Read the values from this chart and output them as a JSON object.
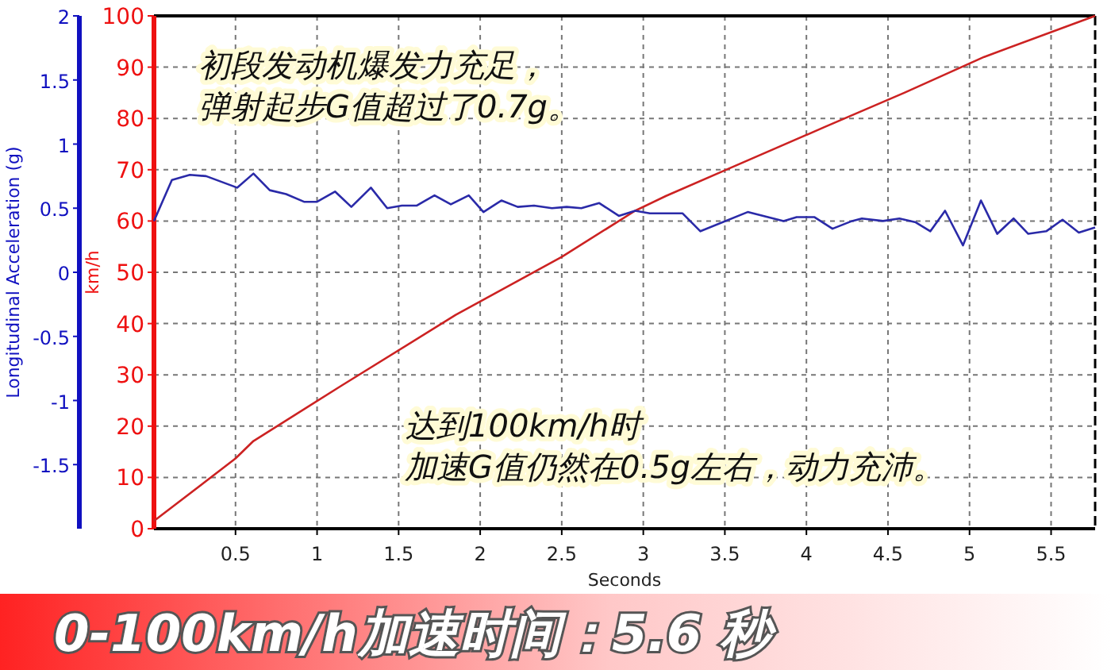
{
  "chart_data": {
    "type": "line",
    "title": "0-100km/h加速时间：5.6 秒",
    "xlabel": "Seconds",
    "ylabel": "km/h",
    "y2label": "Longitudinal Acceleration (g)",
    "annotations": [
      "初段发动机爆发力充足，",
      "弹射起步G值超过了0.7g。",
      "达到100km/h时",
      "加速G值仍然在0.5g左右，动力充沛。"
    ],
    "xlim": [
      0,
      5.77
    ],
    "xticks": [
      0.5,
      1,
      1.5,
      2,
      2.5,
      3,
      3.5,
      4,
      4.5,
      5,
      5.5
    ],
    "ylim": [
      0,
      100
    ],
    "yticks": [
      0,
      10,
      20,
      30,
      40,
      50,
      60,
      70,
      80,
      90,
      100
    ],
    "y2lim": [
      -2,
      2
    ],
    "y2ticks": [
      -1.5,
      -1,
      -0.5,
      0,
      0.5,
      1,
      1.5,
      2
    ],
    "grid": true,
    "series": [
      {
        "color": "#cc2222",
        "x": [
          0,
          0.5,
          0.61,
          1.15,
          1.85,
          2.5,
          2.95,
          3.14,
          3.53,
          4.11,
          4.6,
          5.09,
          5.77
        ],
        "values": [
          1.5,
          13.7,
          17.1,
          27.9,
          41.7,
          53,
          62,
          64.9,
          70.3,
          78.3,
          85,
          92,
          100
        ]
      },
      {
        "color": "#2a2aa8",
        "axis": "y2",
        "x": [
          0,
          0.11,
          0.22,
          0.32,
          0.51,
          0.61,
          0.71,
          0.81,
          0.92,
          1.0,
          1.11,
          1.21,
          1.33,
          1.43,
          1.52,
          1.61,
          1.72,
          1.82,
          1.93,
          2.02,
          2.13,
          2.23,
          2.33,
          2.44,
          2.53,
          2.62,
          2.73,
          2.85,
          2.95,
          3.04,
          3.24,
          3.35,
          3.64,
          3.86,
          3.94,
          4.05,
          4.16,
          4.28,
          4.34,
          4.47,
          4.57,
          4.67,
          4.76,
          4.85,
          4.96,
          5.07,
          5.17,
          5.27,
          5.36,
          5.47,
          5.57,
          5.67,
          5.77
        ],
        "values": [
          0.4,
          0.72,
          0.76,
          0.75,
          0.66,
          0.77,
          0.64,
          0.61,
          0.55,
          0.55,
          0.63,
          0.51,
          0.66,
          0.5,
          0.52,
          0.52,
          0.6,
          0.53,
          0.6,
          0.47,
          0.56,
          0.51,
          0.52,
          0.5,
          0.51,
          0.5,
          0.54,
          0.44,
          0.48,
          0.46,
          0.46,
          0.32,
          0.47,
          0.4,
          0.43,
          0.43,
          0.34,
          0.4,
          0.42,
          0.4,
          0.42,
          0.39,
          0.32,
          0.48,
          0.21,
          0.56,
          0.3,
          0.42,
          0.3,
          0.32,
          0.41,
          0.31,
          0.35
        ]
      }
    ]
  }
}
